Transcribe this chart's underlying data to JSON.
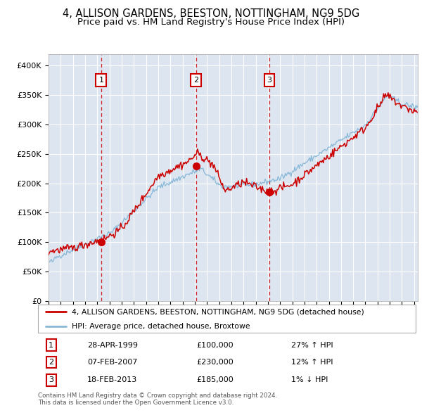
{
  "title": "4, ALLISON GARDENS, BEESTON, NOTTINGHAM, NG9 5DG",
  "subtitle": "Price paid vs. HM Land Registry's House Price Index (HPI)",
  "title_fontsize": 10.5,
  "subtitle_fontsize": 9.5,
  "xlim": [
    1995.0,
    2025.3
  ],
  "ylim": [
    0,
    420000
  ],
  "yticks": [
    0,
    50000,
    100000,
    150000,
    200000,
    250000,
    300000,
    350000,
    400000
  ],
  "ytick_labels": [
    "£0",
    "£50K",
    "£100K",
    "£150K",
    "£200K",
    "£250K",
    "£300K",
    "£350K",
    "£400K"
  ],
  "xticks": [
    1995,
    1996,
    1997,
    1998,
    1999,
    2000,
    2001,
    2002,
    2003,
    2004,
    2005,
    2006,
    2007,
    2008,
    2009,
    2010,
    2011,
    2012,
    2013,
    2014,
    2015,
    2016,
    2017,
    2018,
    2019,
    2020,
    2021,
    2022,
    2023,
    2024,
    2025
  ],
  "background_color": "#dde6f0",
  "grid_color": "#ffffff",
  "hpi_line_color": "#88b8d8",
  "price_line_color": "#cc0000",
  "sale_marker_color": "#cc0000",
  "sale_marker_size": 7,
  "vline_color": "#cc0000",
  "sale_1_x": 1999.32,
  "sale_1_y": 100000,
  "sale_1_label": "1",
  "sale_1_date": "28-APR-1999",
  "sale_1_price": "£100,000",
  "sale_1_hpi": "27% ↑ HPI",
  "sale_2_x": 2007.1,
  "sale_2_y": 230000,
  "sale_2_label": "2",
  "sale_2_date": "07-FEB-2007",
  "sale_2_price": "£230,000",
  "sale_2_hpi": "12% ↑ HPI",
  "sale_3_x": 2013.12,
  "sale_3_y": 185000,
  "sale_3_label": "3",
  "sale_3_date": "18-FEB-2013",
  "sale_3_price": "£185,000",
  "sale_3_hpi": "1% ↓ HPI",
  "footnote": "Contains HM Land Registry data © Crown copyright and database right 2024.\nThis data is licensed under the Open Government Licence v3.0.",
  "legend_line1": "4, ALLISON GARDENS, BEESTON, NOTTINGHAM, NG9 5DG (detached house)",
  "legend_line2": "HPI: Average price, detached house, Broxtowe"
}
